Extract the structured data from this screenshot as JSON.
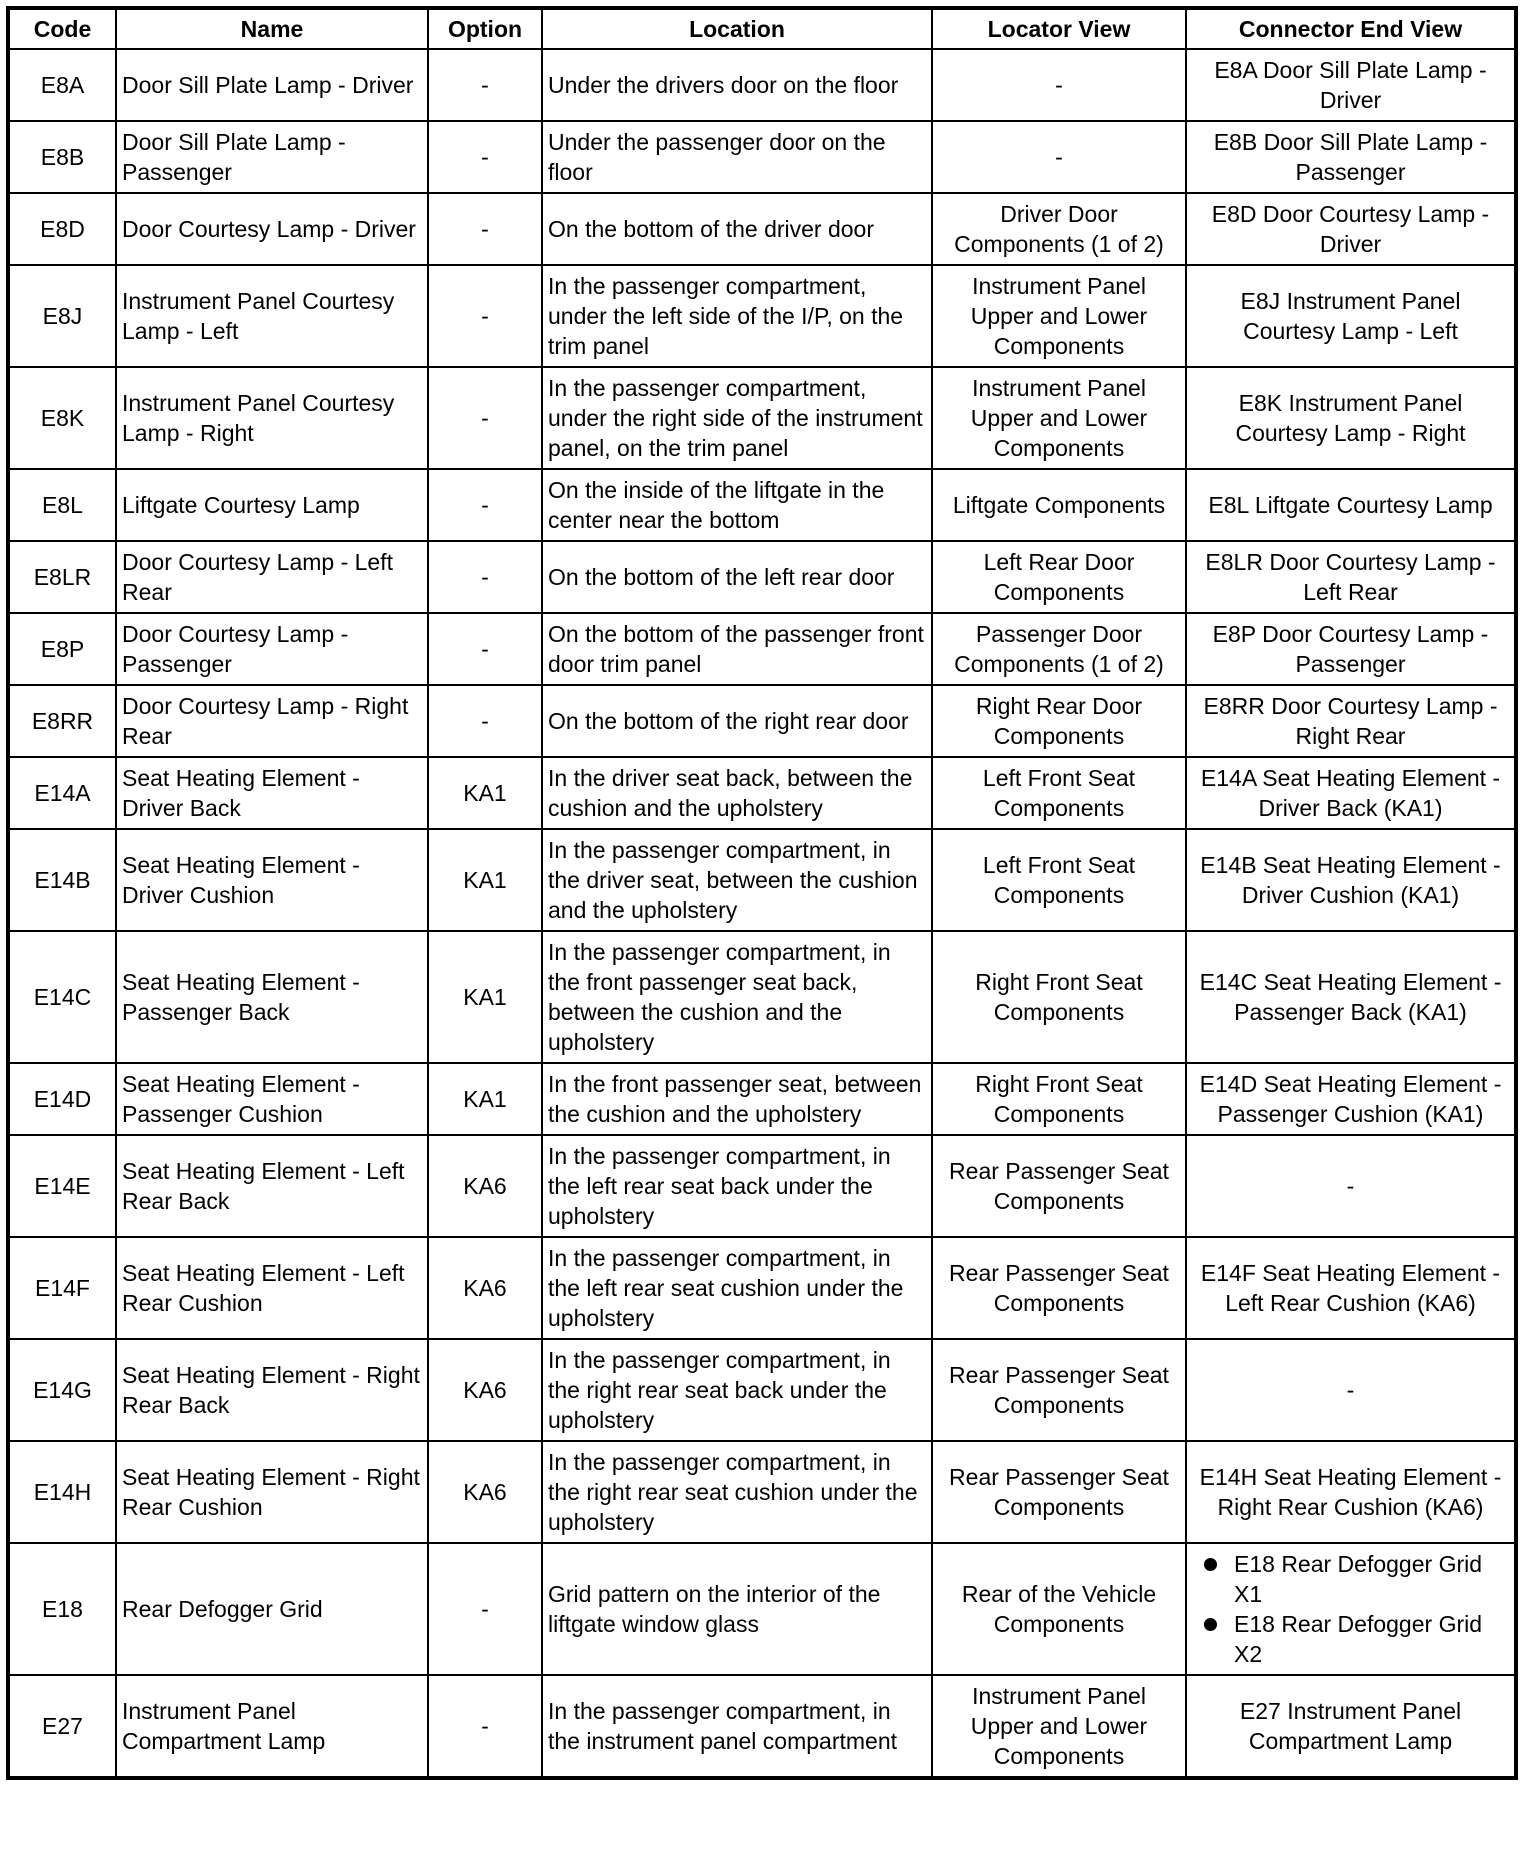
{
  "headers": [
    "Code",
    "Name",
    "Option",
    "Location",
    "Locator View",
    "Connector End View"
  ],
  "rows": [
    {
      "code": "E8A",
      "name": "Door Sill Plate Lamp - Driver",
      "option": "-",
      "location": "Under the drivers door on the floor",
      "locator": "-",
      "connector": "E8A Door Sill Plate Lamp - Driver"
    },
    {
      "code": "E8B",
      "name": "Door Sill Plate Lamp - Passenger",
      "option": "-",
      "location": "Under the passenger door on the floor",
      "locator": "-",
      "connector": "E8B Door Sill Plate Lamp - Passenger"
    },
    {
      "code": "E8D",
      "name": "Door Courtesy Lamp - Driver",
      "option": "-",
      "location": "On the bottom of the driver door",
      "locator": "Driver Door Components (1 of 2)",
      "connector": "E8D Door Courtesy Lamp - Driver"
    },
    {
      "code": "E8J",
      "name": "Instrument Panel Courtesy Lamp - Left",
      "option": "-",
      "location": "In the passenger compartment, under the left side of the I/P, on the trim panel",
      "locator": "Instrument Panel Upper and Lower Components",
      "connector": "E8J Instrument Panel Courtesy Lamp - Left"
    },
    {
      "code": "E8K",
      "name": "Instrument Panel Courtesy Lamp - Right",
      "option": "-",
      "location": "In the passenger compartment, under the right side of the instrument panel, on the trim panel",
      "locator": "Instrument Panel Upper and Lower Components",
      "connector": "E8K Instrument Panel Courtesy Lamp - Right"
    },
    {
      "code": "E8L",
      "name": "Liftgate Courtesy Lamp",
      "option": "-",
      "location": "On the inside of the liftgate in the center near the bottom",
      "locator": "Liftgate Components",
      "connector": "E8L Liftgate Courtesy Lamp"
    },
    {
      "code": "E8LR",
      "name": "Door Courtesy Lamp - Left Rear",
      "option": "-",
      "location": "On the bottom of the left rear door",
      "locator": "Left Rear Door Components",
      "connector": "E8LR Door Courtesy Lamp - Left Rear"
    },
    {
      "code": "E8P",
      "name": "Door Courtesy Lamp - Passenger",
      "option": "-",
      "location": "On the bottom of the passenger front door trim panel",
      "locator": "Passenger Door Components (1 of 2)",
      "connector": "E8P Door Courtesy Lamp - Passenger"
    },
    {
      "code": "E8RR",
      "name": "Door Courtesy Lamp - Right Rear",
      "option": "-",
      "location": "On the bottom of the right rear door",
      "locator": "Right Rear Door Components",
      "connector": "E8RR Door Courtesy Lamp - Right Rear"
    },
    {
      "code": "E14A",
      "name": "Seat Heating Element - Driver Back",
      "option": "KA1",
      "location": "In the driver seat back, between the cushion and the upholstery",
      "locator": "Left Front Seat Components",
      "connector": "E14A Seat Heating Element - Driver Back (KA1)"
    },
    {
      "code": "E14B",
      "name": "Seat Heating Element - Driver Cushion",
      "option": "KA1",
      "location": "In the passenger compartment, in the driver seat, between the cushion and the upholstery",
      "locator": "Left Front Seat Components",
      "connector": "E14B Seat Heating Element - Driver Cushion (KA1)"
    },
    {
      "code": "E14C",
      "name": "Seat Heating Element - Passenger Back",
      "option": "KA1",
      "location": "In the passenger compartment, in the front passenger seat back, between the cushion and the upholstery",
      "locator": "Right Front Seat Components",
      "connector": "E14C Seat Heating Element - Passenger Back (KA1)"
    },
    {
      "code": "E14D",
      "name": "Seat Heating Element - Passenger Cushion",
      "option": "KA1",
      "location": "In the front passenger seat, between the cushion and the upholstery",
      "locator": "Right Front Seat Components",
      "connector": "E14D Seat Heating Element - Passenger Cushion (KA1)"
    },
    {
      "code": "E14E",
      "name": "Seat Heating Element - Left Rear Back",
      "option": "KA6",
      "location": "In the passenger compartment, in the left rear seat back under the upholstery",
      "locator": "Rear Passenger Seat Components",
      "connector": "-"
    },
    {
      "code": "E14F",
      "name": "Seat Heating Element - Left Rear Cushion",
      "option": "KA6",
      "location": "In the passenger compartment, in the left rear seat cushion under the upholstery",
      "locator": "Rear Passenger Seat Components",
      "connector": "E14F Seat Heating Element - Left Rear Cushion (KA6)"
    },
    {
      "code": "E14G",
      "name": "Seat Heating Element - Right Rear Back",
      "option": "KA6",
      "location": "In the passenger compartment, in the right rear seat back under the upholstery",
      "locator": "Rear Passenger Seat Components",
      "connector": "-"
    },
    {
      "code": "E14H",
      "name": "Seat Heating Element - Right Rear Cushion",
      "option": "KA6",
      "location": "In the passenger compartment, in the right rear seat cushion under the upholstery",
      "locator": "Rear Passenger Seat Components",
      "connector": "E14H Seat Heating Element - Right Rear Cushion (KA6)"
    },
    {
      "code": "E18",
      "name": "Rear Defogger Grid",
      "option": "-",
      "location": "Grid pattern on the interior of the liftgate window glass",
      "locator": "Rear of the Vehicle Components",
      "connector_list": [
        "E18 Rear Defogger Grid X1",
        "E18 Rear Defogger Grid X2"
      ]
    },
    {
      "code": "E27",
      "name": "Instrument Panel Compartment Lamp",
      "option": "-",
      "location": "In the passenger compartment, in the instrument panel compartment",
      "locator": "Instrument Panel Upper and Lower Components",
      "connector": "E27 Instrument Panel Compartment Lamp"
    }
  ]
}
